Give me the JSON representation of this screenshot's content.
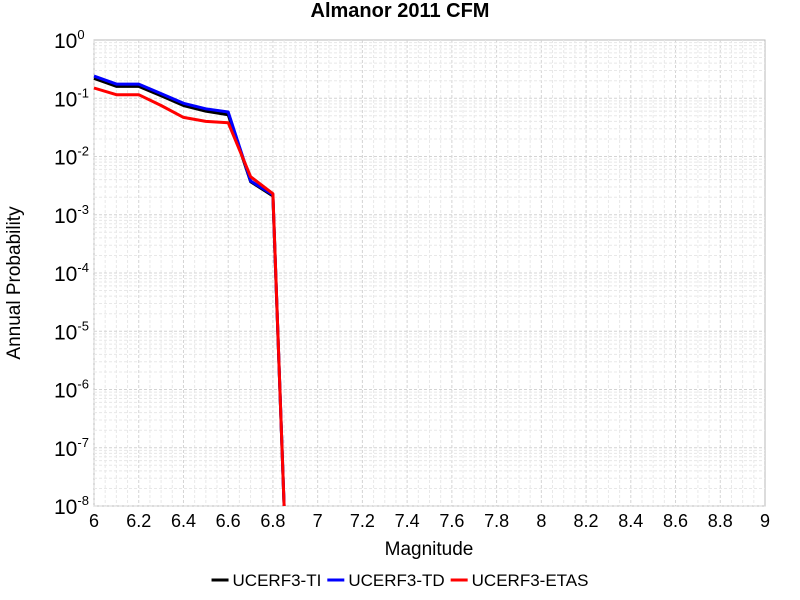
{
  "chart_data": {
    "type": "line",
    "title": "Almanor 2011 CFM",
    "xlabel": "Magnitude",
    "ylabel": "Annual Probability",
    "xlim": [
      6,
      9
    ],
    "ylim": [
      1e-08,
      1
    ],
    "yscale": "log",
    "grid": true,
    "legend_position": "bottom",
    "x_ticks": [
      "6",
      "6.2",
      "6.4",
      "6.6",
      "6.8",
      "7",
      "7.2",
      "7.4",
      "7.6",
      "7.8",
      "8",
      "8.2",
      "8.4",
      "8.6",
      "8.8",
      "9"
    ],
    "y_ticks": [
      {
        "base": "10",
        "exp": "0"
      },
      {
        "base": "10",
        "exp": "-1"
      },
      {
        "base": "10",
        "exp": "-2"
      },
      {
        "base": "10",
        "exp": "-3"
      },
      {
        "base": "10",
        "exp": "-4"
      },
      {
        "base": "10",
        "exp": "-5"
      },
      {
        "base": "10",
        "exp": "-6"
      },
      {
        "base": "10",
        "exp": "-7"
      },
      {
        "base": "10",
        "exp": "-8"
      }
    ],
    "series": [
      {
        "name": "UCERF3-TI",
        "color": "#000000",
        "x": [
          6.0,
          6.1,
          6.2,
          6.3,
          6.4,
          6.5,
          6.6,
          6.7,
          6.8,
          6.85
        ],
        "y": [
          0.22,
          0.16,
          0.16,
          0.11,
          0.075,
          0.06,
          0.052,
          0.0037,
          0.0021,
          1e-08
        ]
      },
      {
        "name": "UCERF3-TD",
        "color": "#0000ff",
        "x": [
          6.0,
          6.1,
          6.2,
          6.3,
          6.4,
          6.5,
          6.6,
          6.7,
          6.8,
          6.85
        ],
        "y": [
          0.24,
          0.175,
          0.175,
          0.12,
          0.082,
          0.066,
          0.058,
          0.0038,
          0.0022,
          1e-08
        ]
      },
      {
        "name": "UCERF3-ETAS",
        "color": "#ff0000",
        "x": [
          6.0,
          6.1,
          6.2,
          6.3,
          6.4,
          6.5,
          6.6,
          6.7,
          6.8,
          6.85
        ],
        "y": [
          0.15,
          0.115,
          0.115,
          0.075,
          0.047,
          0.04,
          0.038,
          0.0045,
          0.0023,
          1e-08
        ]
      }
    ]
  }
}
